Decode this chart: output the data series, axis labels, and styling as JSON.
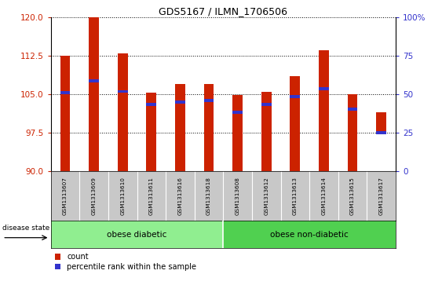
{
  "title": "GDS5167 / ILMN_1706506",
  "samples": [
    "GSM1313607",
    "GSM1313609",
    "GSM1313610",
    "GSM1313611",
    "GSM1313616",
    "GSM1313618",
    "GSM1313608",
    "GSM1313612",
    "GSM1313613",
    "GSM1313614",
    "GSM1313615",
    "GSM1313617"
  ],
  "bar_tops": [
    112.5,
    120.0,
    113.0,
    105.3,
    107.0,
    107.0,
    104.8,
    105.5,
    108.5,
    113.5,
    105.0,
    101.5
  ],
  "bar_bottoms": [
    90.0,
    90.0,
    90.0,
    90.0,
    90.0,
    90.0,
    90.0,
    90.0,
    90.0,
    90.0,
    90.0,
    97.5
  ],
  "blue_markers": [
    105.3,
    107.5,
    105.5,
    103.0,
    103.5,
    103.8,
    101.5,
    103.0,
    104.5,
    106.0,
    102.0,
    97.5
  ],
  "group1_label": "obese diabetic",
  "group2_label": "obese non-diabetic",
  "group1_count": 6,
  "group2_count": 6,
  "ylim_left": [
    90,
    120
  ],
  "ylim_right": [
    0,
    100
  ],
  "yticks_left": [
    90,
    97.5,
    105,
    112.5,
    120
  ],
  "yticks_right": [
    0,
    25,
    50,
    75,
    100
  ],
  "bar_color": "#CC2200",
  "blue_color": "#3333CC",
  "group1_color": "#90EE90",
  "group2_color": "#50D050",
  "tick_bg_color": "#C8C8C8",
  "legend_count_label": "count",
  "legend_pct_label": "percentile rank within the sample",
  "bar_width": 0.35
}
